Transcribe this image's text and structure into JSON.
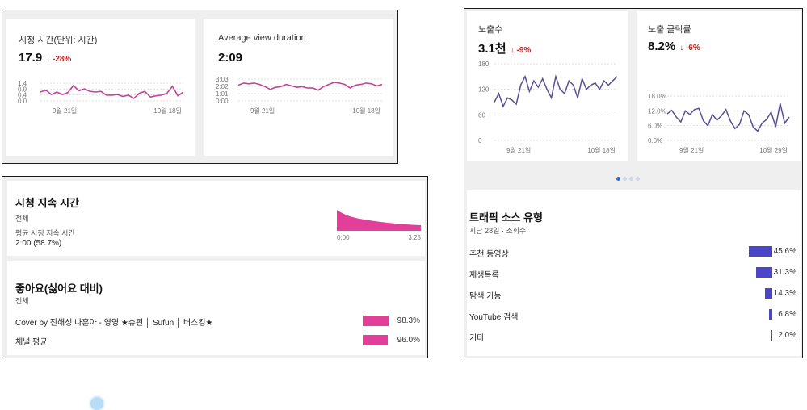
{
  "panel1": {
    "card1": {
      "title": "시청 시간(단위: 시간)",
      "value": "17.9",
      "delta": "↓ -28%",
      "y_ticks": [
        "1.4",
        "0.9",
        "0.4",
        "0.0"
      ],
      "x_ticks": [
        "9월 21일",
        "10월 18일"
      ]
    },
    "card2": {
      "title": "Average view duration",
      "value": "2:09",
      "delta": "",
      "y_ticks": [
        "3:03",
        "2:02",
        "1:01",
        "0:00"
      ],
      "x_ticks": [
        "9월 21일",
        "10월 18일"
      ]
    }
  },
  "panel2": {
    "retention": {
      "title": "시청 지속 시간",
      "subtitle": "전체",
      "avg_label": "평균 시청 지속 시간",
      "avg_value": "2:00 (58.7%)",
      "x_ticks": [
        "0:00",
        "3:25"
      ]
    },
    "likes": {
      "title": "좋아요(싫어요 대비)",
      "subtitle": "전체",
      "rows": [
        {
          "label": "Cover by 진해성 나훈아 - 영영  ★슈펀 │ Sufun │ 버스킹★",
          "pct": "98.3%",
          "value": 98.3
        },
        {
          "label": "채널 평균",
          "pct": "96.0%",
          "value": 96.0
        }
      ]
    }
  },
  "panel3": {
    "card1": {
      "title": "노출수",
      "value": "3.1천",
      "delta": "↓ -9%",
      "y_ticks": [
        "180",
        "120",
        "60",
        "0"
      ],
      "x_ticks": [
        "9월 21일",
        "10월 18일"
      ]
    },
    "card2": {
      "title": "노출 클릭률",
      "value": "8.2%",
      "delta": "↓ -6%",
      "y_ticks": [
        "18.0%",
        "12.0%",
        "6.0%",
        "0.0%"
      ],
      "x_ticks": [
        "9월 21일",
        "10월 29일"
      ]
    },
    "traffic": {
      "title": "트래픽 소스 유형",
      "subtitle": "지난 28일 · 조회수",
      "rows": [
        {
          "label": "추천 동영상",
          "pct": "45.6%",
          "value": 45.6
        },
        {
          "label": "재생목록",
          "pct": "31.3%",
          "value": 31.3
        },
        {
          "label": "탐색 기능",
          "pct": "14.3%",
          "value": 14.3
        },
        {
          "label": "YouTube 검색",
          "pct": "6.8%",
          "value": 6.8
        },
        {
          "label": "기타",
          "pct": "2.0%",
          "value": 2.0
        }
      ]
    }
  },
  "colors": {
    "pink": "#c2449a",
    "bar_pink": "#e23f9b",
    "purple": "#5b4f94",
    "bar_blue": "#4b45c8",
    "negative": "#c5221f"
  },
  "chart_data": [
    {
      "type": "line",
      "title": "시청 시간(단위: 시간)",
      "ylim": [
        0,
        1.4
      ],
      "series": [
        {
          "values": [
            0.7,
            0.85,
            0.5,
            0.7,
            0.5,
            0.65,
            1.2,
            0.8,
            0.95,
            0.75,
            0.7,
            0.75,
            0.45,
            0.45,
            0.5,
            0.35,
            0.45,
            0.2,
            0.6,
            0.75,
            0.3,
            0.4,
            0.45,
            0.6,
            1.15,
            0.4,
            0.7
          ]
        }
      ]
    },
    {
      "type": "line",
      "title": "Average view duration",
      "ylim": [
        0,
        3.05
      ],
      "series": [
        {
          "values": [
            2.2,
            2.5,
            2.4,
            2.5,
            2.3,
            2.0,
            1.6,
            1.9,
            2.0,
            2.3,
            2.1,
            1.9,
            2.0,
            1.8,
            1.8,
            1.5,
            2.0,
            2.3,
            2.6,
            2.5,
            2.3,
            1.8,
            2.2,
            2.3,
            2.5,
            2.4,
            2.1,
            2.3
          ]
        }
      ]
    },
    {
      "type": "line",
      "title": "노출수",
      "ylim": [
        0,
        180
      ],
      "series": [
        {
          "values": [
            90,
            110,
            80,
            100,
            95,
            85,
            130,
            150,
            115,
            140,
            125,
            145,
            120,
            100,
            150,
            120,
            110,
            140,
            130,
            100,
            145,
            120,
            130,
            135,
            120,
            140,
            130,
            140,
            150
          ]
        }
      ]
    },
    {
      "type": "line",
      "title": "노출 클릭률",
      "ylim": [
        0,
        18
      ],
      "series": [
        {
          "values": [
            10.8,
            12.2,
            9.5,
            7.5,
            12.0,
            10.5,
            12.5,
            13.0,
            8.0,
            6.0,
            10.5,
            8.2,
            10.0,
            12.5,
            7.8,
            4.8,
            6.5,
            12.0,
            10.5,
            5.5,
            3.8,
            7.0,
            8.5,
            11.5,
            5.5,
            15.0,
            7.0,
            9.5
          ]
        }
      ]
    }
  ]
}
